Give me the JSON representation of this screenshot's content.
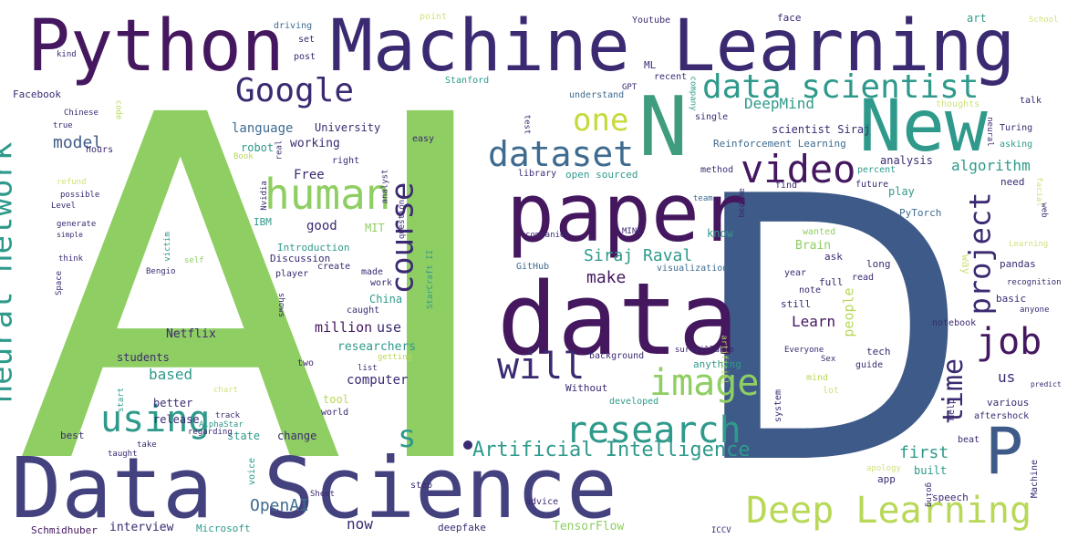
{
  "colors": {
    "green": "#8fce63",
    "teal": "#2f9a8b",
    "darkpurple": "#44175f",
    "purple": "#3b2a71",
    "navy": "#3f4f8c",
    "blue": "#3e6b8f",
    "yellow": "#cfe37a",
    "lime": "#b8d858"
  },
  "words": {
    "AI_a": "A",
    "AI_i": "I",
    "D": "D",
    "python": "Python",
    "machine_learning": "Machine Learning",
    "data_science": "Data Science",
    "data": "data",
    "paper": "paper",
    "new": "New",
    "n": "N",
    "p": "P",
    "human": "human",
    "video": "video",
    "dataset": "dataset",
    "google": "Google",
    "data_scientist": "data scientist",
    "research": "research",
    "deep_learning": "Deep Learning",
    "image": "image",
    "job": "job",
    "course": "course",
    "neural_network": "neural network",
    "using": "using",
    "will": "will",
    "one": "one",
    "time": "time",
    "project": "project",
    "artificial_intelligence": "Artificial Intelligence",
    "s": "s",
    "siraj_raval": "Siraj Raval",
    "model": "model",
    "deepmind": "DeepMind",
    "first": "first",
    "openai": "OpenAI",
    "learn": "Learn",
    "make": "make",
    "people": "people",
    "algorithm": "algorithm",
    "based": "based",
    "good": "good",
    "free": "Free",
    "language": "language",
    "university": "University",
    "working": "working",
    "million": "million",
    "use": "use",
    "computer": "computer",
    "researchers": "researchers",
    "netflix": "Netflix",
    "students": "students",
    "better": "better",
    "release": "release",
    "state": "state",
    "best": "best",
    "interview": "interview",
    "now": "now",
    "deepfake": "deepfake",
    "tensorflow": "TensorFlow",
    "microsoft": "Microsoft",
    "schmidhuber": "Schmidhuber",
    "facebook": "Facebook",
    "ml": "ML",
    "gpt": "GPT",
    "stanford": "Stanford",
    "youtube": "Youtube",
    "point": "point",
    "driving": "driving",
    "set": "set",
    "post": "post",
    "kind": "kind",
    "face": "face",
    "art": "art",
    "school": "School",
    "recent": "recent",
    "company": "company",
    "understand": "understand",
    "robot": "robot",
    "scientist_siraj": "scientist Siraj",
    "reinforcement_learning": "Reinforcement Learning",
    "single": "single",
    "thoughts": "thoughts",
    "neural": "neural",
    "turing": "Turing",
    "asking": "asking",
    "talk": "talk",
    "analysis": "analysis",
    "method": "method",
    "percent": "percent",
    "find": "find",
    "need": "need",
    "play": "play",
    "future": "future",
    "pytorch": "PyTorch",
    "wanted": "wanted",
    "brain": "Brain",
    "ask": "ask",
    "long": "long",
    "pandas": "pandas",
    "year": "year",
    "full": "full",
    "read": "read",
    "note": "note",
    "still": "still",
    "recognition": "recognition",
    "basic": "basic",
    "anyone": "anyone",
    "notebook": "notebook",
    "everyone": "Everyone",
    "tech": "tech",
    "guide": "guide",
    "us": "us",
    "predict": "predict",
    "various": "various",
    "aftershock": "aftershock",
    "beat": "beat",
    "help": "Help",
    "machine_small": "Machine",
    "speech": "speech",
    "built": "built",
    "app": "app",
    "apology": "apology",
    "going": "going",
    "way": "way",
    "sex": "Sex",
    "mind": "mind",
    "lot": "lot",
    "system": "system",
    "surveillance": "surveillance",
    "artificial": "artificial",
    "background": "background",
    "developed": "developed",
    "without": "Without",
    "anything": "anything",
    "know": "know",
    "visualization": "visualization",
    "github": "GitHub",
    "mine": "MINE",
    "companies": "companies",
    "open_sourced": "open sourced",
    "library": "library",
    "test": "test",
    "easy": "easy",
    "right": "right",
    "caught": "caught",
    "made": "made",
    "work": "work",
    "china": "China",
    "create": "create",
    "discussion": "Discussion",
    "player": "player",
    "introduction": "Introduction",
    "starcraft": "StarCraft II",
    "getting": "getting",
    "list": "list",
    "two": "two",
    "tool": "tool",
    "world": "world",
    "change": "change",
    "voice": "voice",
    "sheet": "Sheet",
    "step": "step",
    "advice": "advice",
    "iccv": "ICCV",
    "shows": "shows",
    "question": "question",
    "analyst": "analyst",
    "mit": "MIT",
    "nvidia": "Nvidia",
    "ibm": "IBM",
    "real": "real",
    "book": "Book",
    "hours": "hours",
    "chinese": "Chinese",
    "true": "true",
    "code": "code",
    "refund": "refund",
    "possible": "possible",
    "level": "Level",
    "generate": "generate",
    "simple": "simple",
    "think": "think",
    "space": "Space",
    "bengio": "Bengio",
    "self": "self",
    "victim": "victim",
    "regarding": "regarding",
    "alphastar": "AlphaStar",
    "track": "track",
    "take": "take",
    "taught": "taught",
    "chart": "chart",
    "start": "start",
    "become": "become",
    "team": "team",
    "facial": "facial",
    "web": "web",
    "learning_small": "Learning"
  }
}
